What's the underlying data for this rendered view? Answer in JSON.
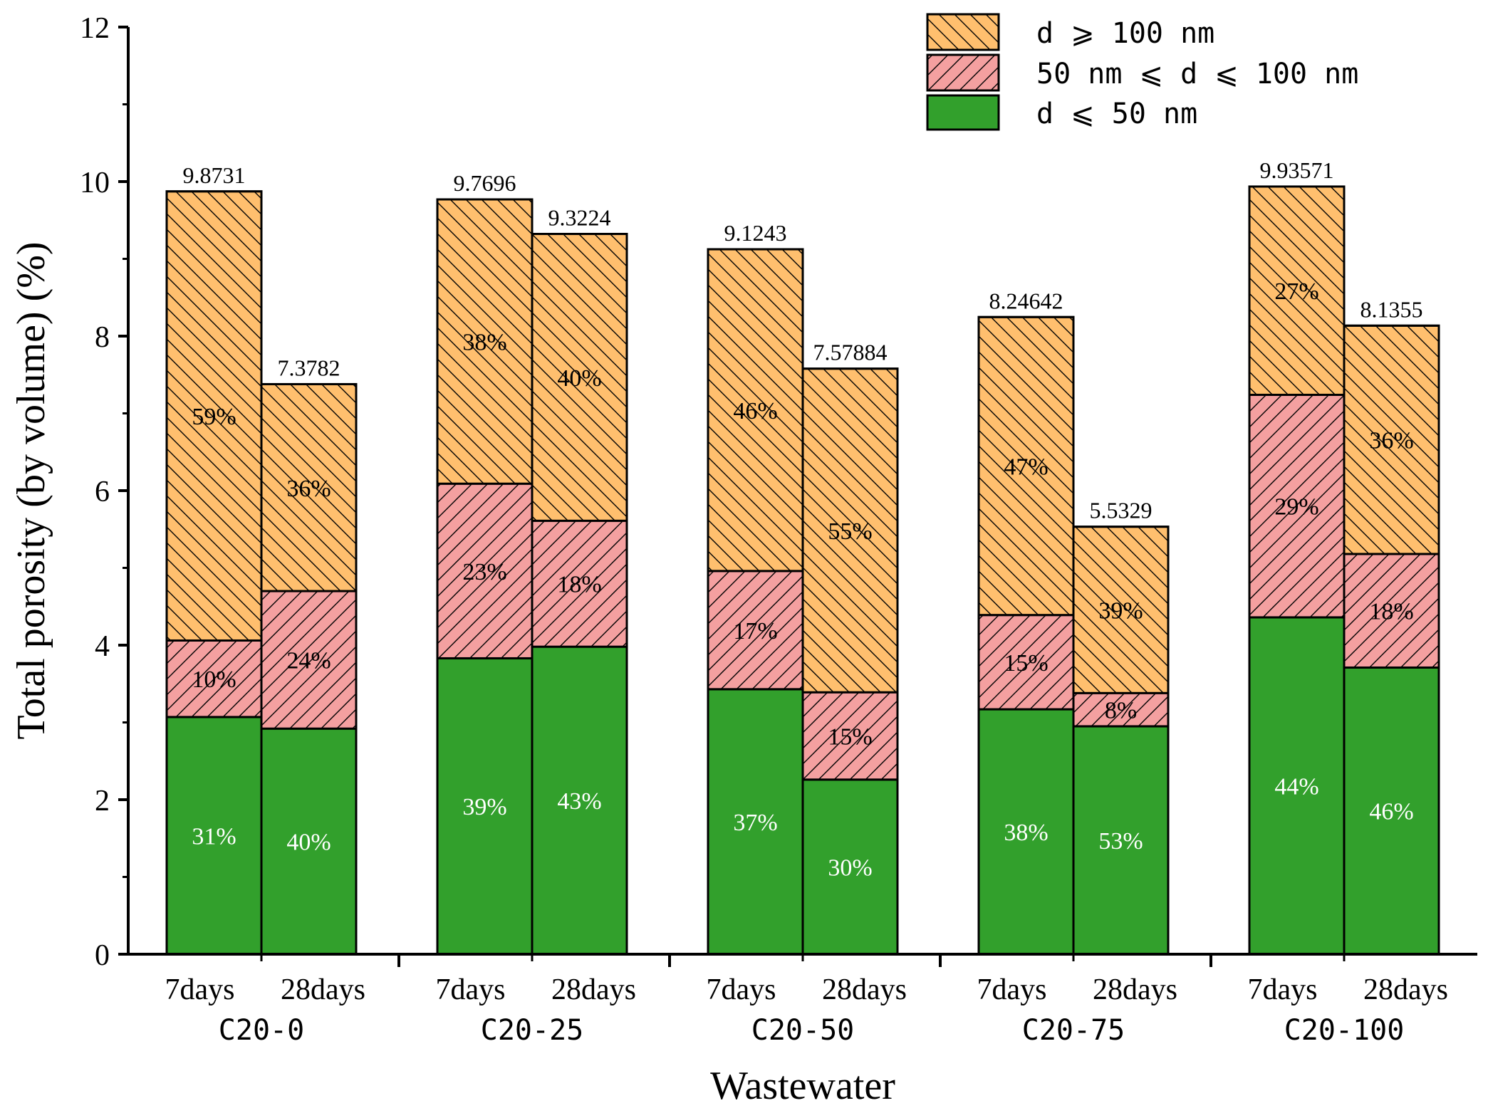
{
  "chart_data": {
    "type": "bar",
    "stacked": true,
    "ylabel": "Total porosity (by volume) (%)",
    "xlabel": "Wastewater",
    "ylim": [
      0,
      12
    ],
    "yticks": [
      "0",
      "2",
      "4",
      "6",
      "8",
      "10",
      "12"
    ],
    "legend": [
      {
        "name": "d ⩾ 100 nm",
        "color": "#FFBF6E",
        "hatch": "backslash"
      },
      {
        "name": "50 nm ⩽ d ⩽ 100 nm",
        "color": "#F4A0A0",
        "hatch": "slash"
      },
      {
        "name": "d ⩽ 50 nm",
        "color": "#32A02C",
        "hatch": "none"
      }
    ],
    "groups": [
      {
        "name": "C20-0",
        "bars": [
          {
            "label": "7days",
            "total": 9.8731,
            "total_label": "9.8731",
            "segments": [
              {
                "value": 3.07,
                "label": "31%"
              },
              {
                "value": 0.99,
                "label": "10%"
              },
              {
                "value": 5.8131,
                "label": "59%"
              }
            ]
          },
          {
            "label": "28days",
            "total": 7.3782,
            "total_label": "7.3782",
            "segments": [
              {
                "value": 2.92,
                "label": "40%"
              },
              {
                "value": 1.78,
                "label": "24%"
              },
              {
                "value": 2.6782,
                "label": "36%"
              }
            ]
          }
        ]
      },
      {
        "name": "C20-25",
        "bars": [
          {
            "label": "7days",
            "total": 9.7696,
            "total_label": "9.7696",
            "segments": [
              {
                "value": 3.83,
                "label": "39%"
              },
              {
                "value": 2.26,
                "label": "23%"
              },
              {
                "value": 3.6796,
                "label": "38%"
              }
            ]
          },
          {
            "label": "28days",
            "total": 9.3224,
            "total_label": "9.3224",
            "segments": [
              {
                "value": 3.98,
                "label": "43%"
              },
              {
                "value": 1.63,
                "label": "18%"
              },
              {
                "value": 3.7124,
                "label": "40%"
              }
            ]
          }
        ]
      },
      {
        "name": "C20-50",
        "bars": [
          {
            "label": "7days",
            "total": 9.1243,
            "total_label": "9.1243",
            "segments": [
              {
                "value": 3.43,
                "label": "37%"
              },
              {
                "value": 1.53,
                "label": "17%"
              },
              {
                "value": 4.1643,
                "label": "46%"
              }
            ]
          },
          {
            "label": "28days",
            "total": 7.57884,
            "total_label": "7.57884",
            "segments": [
              {
                "value": 2.26,
                "label": "30%"
              },
              {
                "value": 1.13,
                "label": "15%"
              },
              {
                "value": 4.18884,
                "label": "55%"
              }
            ]
          }
        ]
      },
      {
        "name": "C20-75",
        "bars": [
          {
            "label": "7days",
            "total": 8.24642,
            "total_label": "8.24642",
            "segments": [
              {
                "value": 3.17,
                "label": "38%"
              },
              {
                "value": 1.22,
                "label": "15%"
              },
              {
                "value": 3.85642,
                "label": "47%"
              }
            ]
          },
          {
            "label": "28days",
            "total": 5.5329,
            "total_label": "5.5329",
            "segments": [
              {
                "value": 2.95,
                "label": "53%"
              },
              {
                "value": 0.43,
                "label": "8%"
              },
              {
                "value": 2.1529,
                "label": "39%"
              }
            ]
          }
        ]
      },
      {
        "name": "C20-100",
        "bars": [
          {
            "label": "7days",
            "total": 9.93571,
            "total_label": "9.93571",
            "segments": [
              {
                "value": 4.36,
                "label": "44%"
              },
              {
                "value": 2.88,
                "label": "29%"
              },
              {
                "value": 2.69571,
                "label": "27%"
              }
            ]
          },
          {
            "label": "28days",
            "total": 8.1355,
            "total_label": "8.1355",
            "segments": [
              {
                "value": 3.71,
                "label": "46%"
              },
              {
                "value": 1.47,
                "label": "18%"
              },
              {
                "value": 2.9555,
                "label": "36%"
              }
            ]
          }
        ]
      }
    ]
  }
}
